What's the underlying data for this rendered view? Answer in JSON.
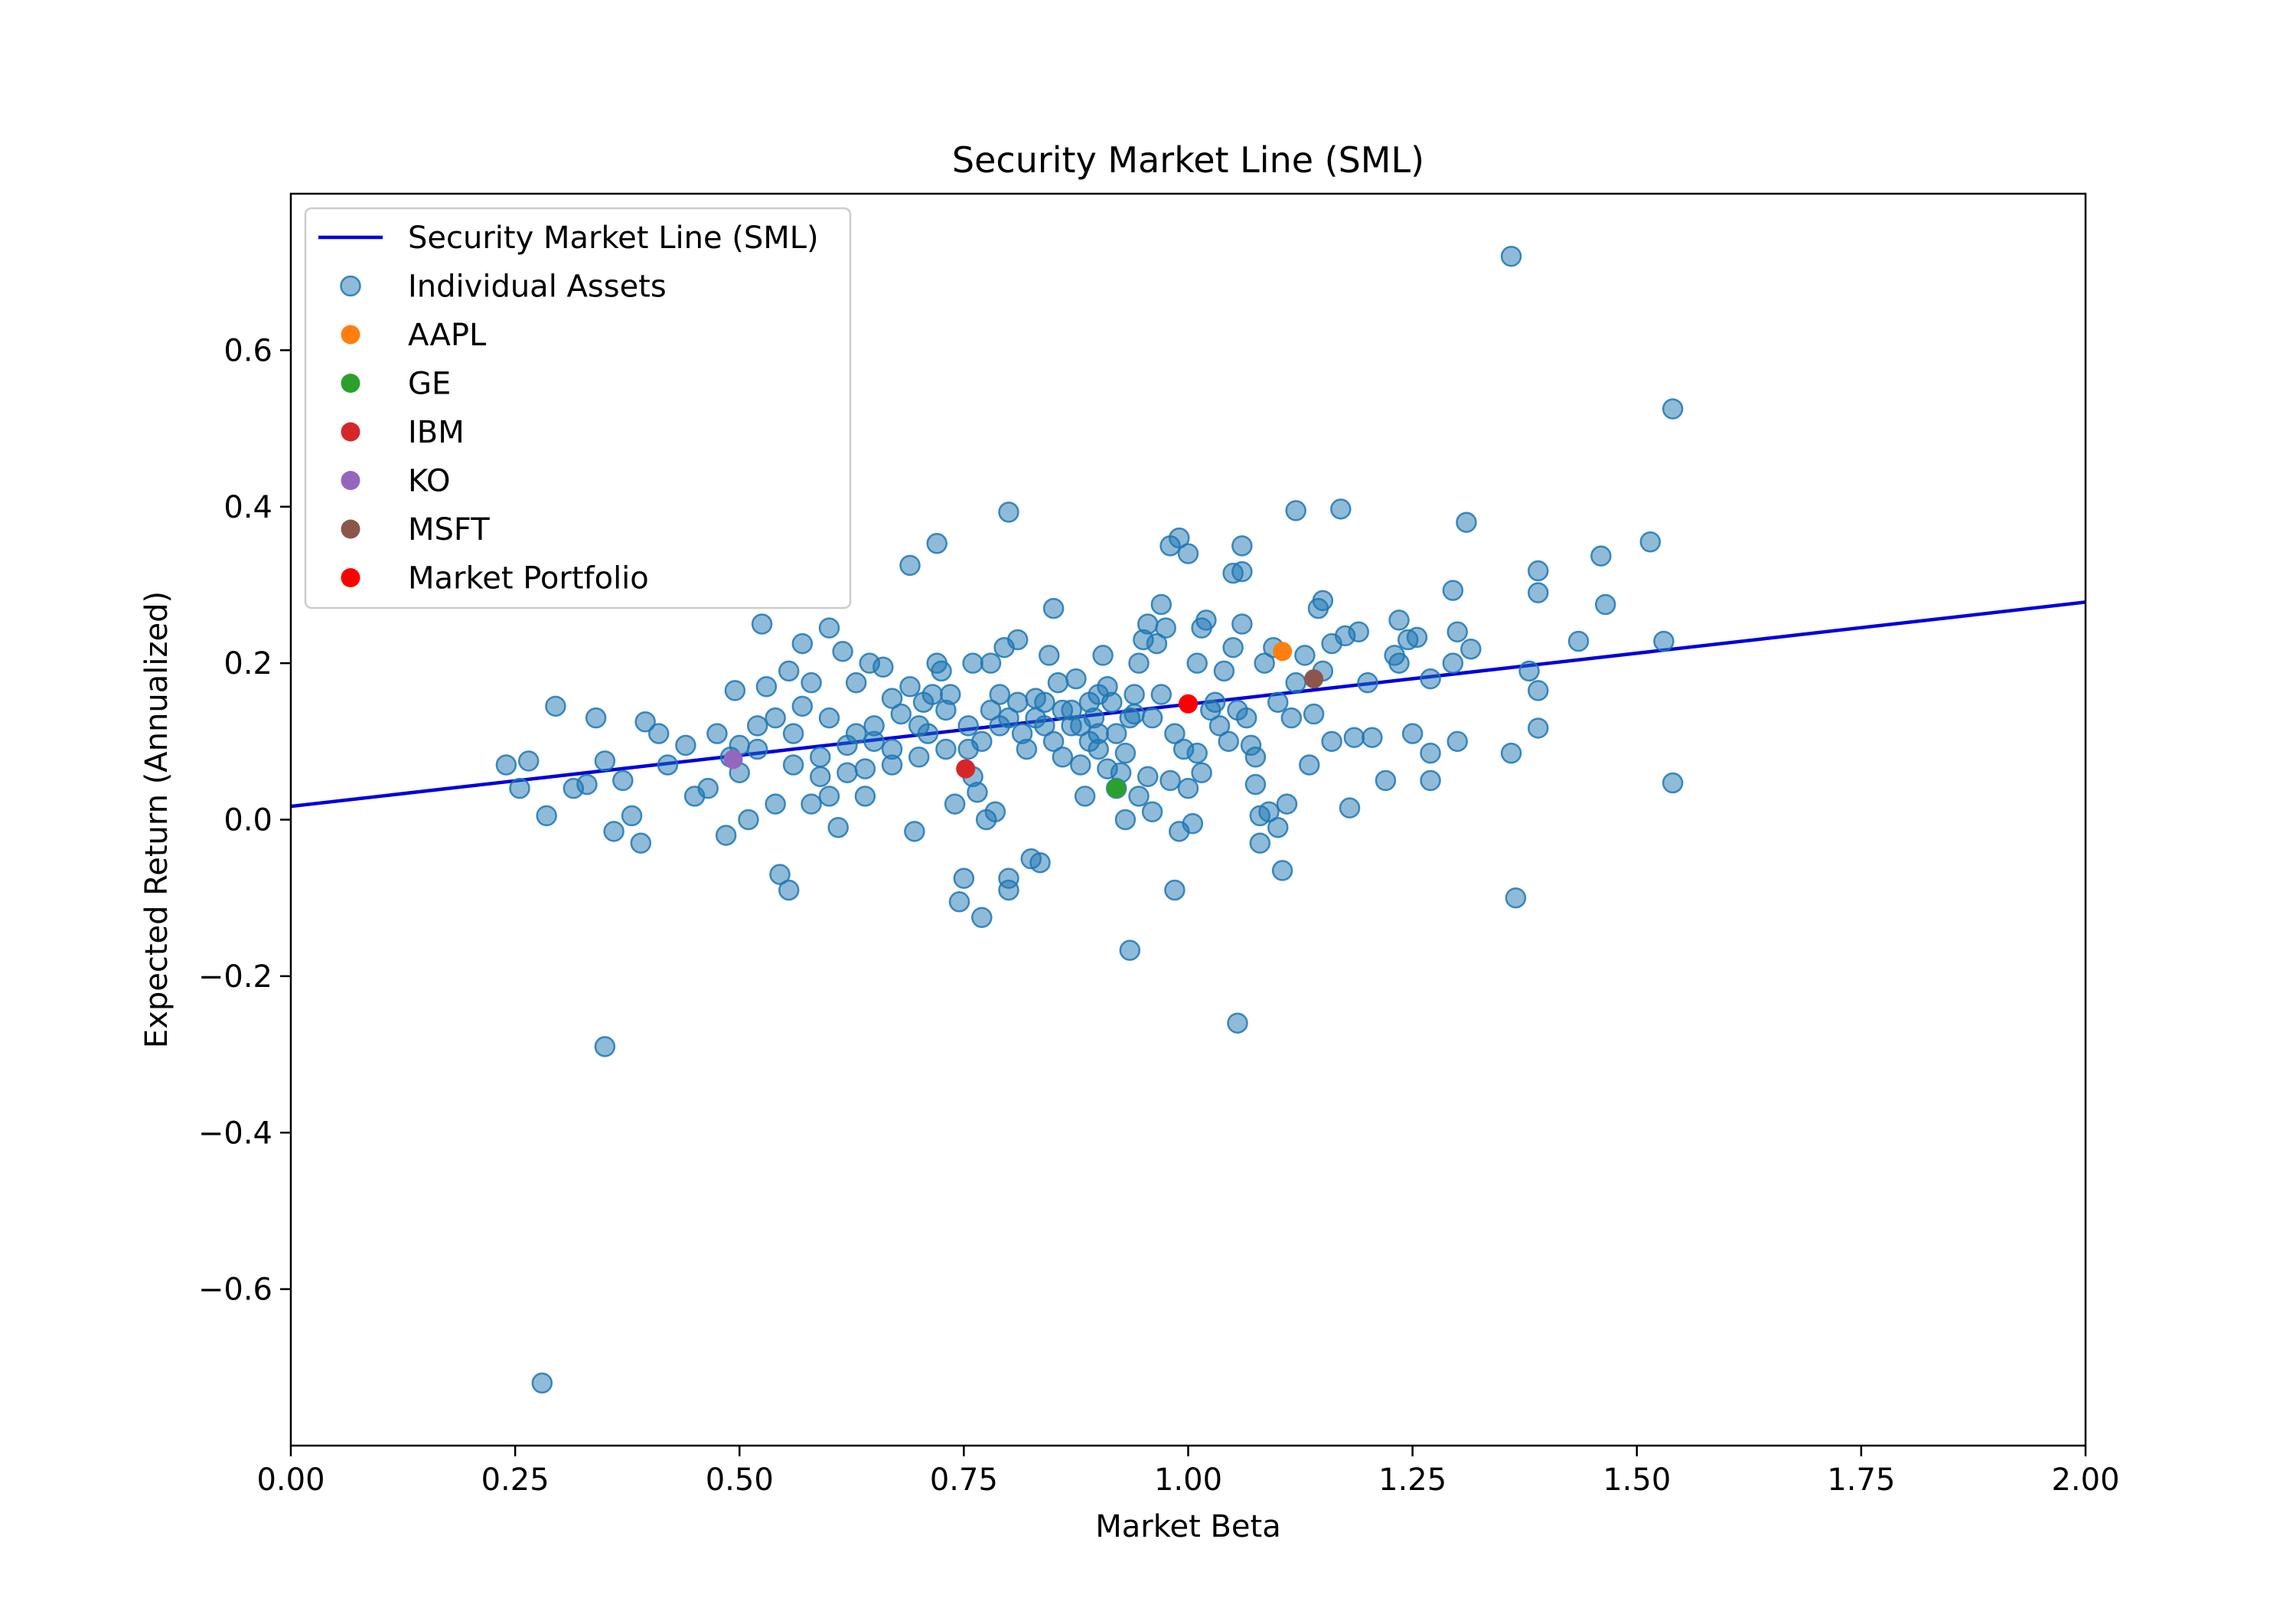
{
  "chart_data": {
    "type": "scatter",
    "title": "Security Market Line (SML)",
    "xlabel": "Market Beta",
    "ylabel": "Expected Return (Annualized)",
    "xlim": [
      0.0,
      2.0
    ],
    "ylim": [
      -0.8,
      0.8
    ],
    "xticks": [
      0.0,
      0.25,
      0.5,
      0.75,
      1.0,
      1.25,
      1.5,
      1.75,
      2.0
    ],
    "xtick_labels": [
      "0.00",
      "0.25",
      "0.50",
      "0.75",
      "1.00",
      "1.25",
      "1.50",
      "1.75",
      "2.00"
    ],
    "yticks": [
      -0.6,
      -0.4,
      -0.2,
      0.0,
      0.2,
      0.4,
      0.6
    ],
    "ytick_labels": [
      "−0.6",
      "−0.4",
      "−0.2",
      "0.0",
      "0.2",
      "0.4",
      "0.6"
    ],
    "grid": false,
    "legend_position": "top-left",
    "sml": {
      "name": "Security Market Line (SML)",
      "color": "#0000dd",
      "x": [
        0.0,
        2.0
      ],
      "y": [
        0.017,
        0.278
      ]
    },
    "individual_assets": {
      "name": "Individual Assets",
      "color": "#1f77b4",
      "points": [
        [
          0.28,
          -0.72
        ],
        [
          0.35,
          -0.29
        ],
        [
          1.36,
          0.72
        ],
        [
          1.54,
          0.525
        ],
        [
          1.54,
          0.047
        ],
        [
          1.365,
          -0.1
        ],
        [
          1.055,
          -0.26
        ],
        [
          0.935,
          -0.167
        ],
        [
          0.8,
          0.393
        ],
        [
          0.69,
          0.325
        ],
        [
          0.72,
          0.353
        ],
        [
          1.12,
          0.395
        ],
        [
          1.17,
          0.397
        ],
        [
          0.99,
          0.36
        ],
        [
          0.98,
          0.35
        ],
        [
          1.0,
          0.34
        ],
        [
          1.06,
          0.35
        ],
        [
          1.05,
          0.315
        ],
        [
          1.06,
          0.317
        ],
        [
          1.31,
          0.38
        ],
        [
          1.39,
          0.318
        ],
        [
          1.39,
          0.29
        ],
        [
          1.46,
          0.337
        ],
        [
          1.465,
          0.275
        ],
        [
          1.515,
          0.355
        ],
        [
          1.53,
          0.228
        ],
        [
          1.435,
          0.228
        ],
        [
          1.38,
          0.19
        ],
        [
          1.39,
          0.165
        ],
        [
          1.39,
          0.117
        ],
        [
          1.36,
          0.085
        ],
        [
          1.315,
          0.218
        ],
        [
          1.3,
          0.24
        ],
        [
          1.295,
          0.293
        ],
        [
          1.295,
          0.2
        ],
        [
          1.3,
          0.1
        ],
        [
          1.27,
          0.18
        ],
        [
          1.27,
          0.085
        ],
        [
          1.27,
          0.05
        ],
        [
          1.255,
          0.233
        ],
        [
          1.245,
          0.23
        ],
        [
          1.235,
          0.255
        ],
        [
          1.235,
          0.2
        ],
        [
          1.23,
          0.21
        ],
        [
          1.25,
          0.11
        ],
        [
          1.22,
          0.05
        ],
        [
          1.205,
          0.105
        ],
        [
          1.2,
          0.175
        ],
        [
          1.185,
          0.105
        ],
        [
          1.18,
          0.015
        ],
        [
          1.19,
          0.24
        ],
        [
          1.175,
          0.235
        ],
        [
          1.16,
          0.225
        ],
        [
          1.15,
          0.28
        ],
        [
          1.145,
          0.27
        ],
        [
          1.14,
          0.135
        ],
        [
          1.135,
          0.07
        ],
        [
          1.12,
          0.175
        ],
        [
          1.11,
          0.02
        ],
        [
          1.105,
          -0.065
        ],
        [
          1.1,
          -0.01
        ],
        [
          1.09,
          0.01
        ],
        [
          1.08,
          -0.03
        ],
        [
          1.08,
          0.005
        ],
        [
          1.075,
          0.045
        ],
        [
          1.07,
          0.095
        ],
        [
          1.06,
          0.25
        ],
        [
          1.05,
          0.22
        ],
        [
          1.04,
          0.19
        ],
        [
          1.03,
          0.15
        ],
        [
          1.02,
          0.255
        ],
        [
          1.015,
          0.245
        ],
        [
          1.01,
          0.2
        ],
        [
          1.01,
          0.085
        ],
        [
          1.005,
          -0.005
        ],
        [
          0.99,
          -0.015
        ],
        [
          0.985,
          -0.09
        ],
        [
          0.975,
          0.245
        ],
        [
          0.97,
          0.275
        ],
        [
          0.965,
          0.225
        ],
        [
          0.955,
          0.25
        ],
        [
          0.95,
          0.23
        ],
        [
          0.945,
          0.2
        ],
        [
          0.94,
          0.16
        ],
        [
          0.935,
          0.13
        ],
        [
          0.93,
          0.085
        ],
        [
          0.925,
          0.06
        ],
        [
          0.92,
          0.04
        ],
        [
          0.91,
          0.065
        ],
        [
          0.905,
          0.21
        ],
        [
          0.9,
          0.16
        ],
        [
          0.895,
          0.13
        ],
        [
          0.89,
          0.1
        ],
        [
          0.885,
          0.03
        ],
        [
          0.875,
          0.18
        ],
        [
          0.87,
          0.14
        ],
        [
          0.86,
          0.08
        ],
        [
          0.85,
          0.27
        ],
        [
          0.845,
          0.21
        ],
        [
          0.84,
          0.12
        ],
        [
          0.835,
          -0.055
        ],
        [
          0.825,
          -0.05
        ],
        [
          0.8,
          -0.075
        ],
        [
          0.8,
          -0.09
        ],
        [
          0.795,
          0.22
        ],
        [
          0.79,
          0.16
        ],
        [
          0.785,
          0.01
        ],
        [
          0.775,
          0.0
        ],
        [
          0.77,
          -0.125
        ],
        [
          0.765,
          0.035
        ],
        [
          0.76,
          0.2
        ],
        [
          0.755,
          0.09
        ],
        [
          0.75,
          -0.075
        ],
        [
          0.745,
          -0.105
        ],
        [
          0.74,
          0.02
        ],
        [
          0.73,
          0.14
        ],
        [
          0.725,
          0.19
        ],
        [
          0.72,
          0.2
        ],
        [
          0.71,
          0.11
        ],
        [
          0.7,
          0.08
        ],
        [
          0.695,
          -0.015
        ],
        [
          0.69,
          0.17
        ],
        [
          0.68,
          0.135
        ],
        [
          0.67,
          0.07
        ],
        [
          0.66,
          0.195
        ],
        [
          0.65,
          0.1
        ],
        [
          0.64,
          0.065
        ],
        [
          0.63,
          0.175
        ],
        [
          0.62,
          0.095
        ],
        [
          0.61,
          -0.01
        ],
        [
          0.6,
          0.13
        ],
        [
          0.59,
          0.055
        ],
        [
          0.58,
          0.175
        ],
        [
          0.57,
          0.225
        ],
        [
          0.56,
          0.11
        ],
        [
          0.555,
          -0.09
        ],
        [
          0.545,
          -0.07
        ],
        [
          0.54,
          0.02
        ],
        [
          0.53,
          0.17
        ],
        [
          0.525,
          0.25
        ],
        [
          0.52,
          0.12
        ],
        [
          0.51,
          0.0
        ],
        [
          0.5,
          0.095
        ],
        [
          0.495,
          0.165
        ],
        [
          0.49,
          0.08
        ],
        [
          0.485,
          -0.02
        ],
        [
          0.475,
          0.11
        ],
        [
          0.465,
          0.04
        ],
        [
          0.45,
          0.03
        ],
        [
          0.44,
          0.095
        ],
        [
          0.42,
          0.07
        ],
        [
          0.41,
          0.11
        ],
        [
          0.395,
          0.125
        ],
        [
          0.39,
          -0.03
        ],
        [
          0.38,
          0.005
        ],
        [
          0.37,
          0.05
        ],
        [
          0.36,
          -0.015
        ],
        [
          0.35,
          0.075
        ],
        [
          0.34,
          0.13
        ],
        [
          0.33,
          0.045
        ],
        [
          0.315,
          0.04
        ],
        [
          0.295,
          0.145
        ],
        [
          0.285,
          0.005
        ],
        [
          0.265,
          0.075
        ],
        [
          0.255,
          0.04
        ],
        [
          0.24,
          0.07
        ],
        [
          0.6,
          0.245
        ],
        [
          0.615,
          0.215
        ],
        [
          0.645,
          0.2
        ],
        [
          0.67,
          0.155
        ],
        [
          0.705,
          0.15
        ],
        [
          0.715,
          0.16
        ],
        [
          0.735,
          0.16
        ],
        [
          0.755,
          0.12
        ],
        [
          0.78,
          0.2
        ],
        [
          0.81,
          0.23
        ],
        [
          0.815,
          0.11
        ],
        [
          0.83,
          0.155
        ],
        [
          0.855,
          0.175
        ],
        [
          0.88,
          0.12
        ],
        [
          0.9,
          0.11
        ],
        [
          0.915,
          0.15
        ],
        [
          0.92,
          0.11
        ],
        [
          0.94,
          0.135
        ],
        [
          0.96,
          0.13
        ],
        [
          0.97,
          0.16
        ],
        [
          0.985,
          0.11
        ],
        [
          0.995,
          0.09
        ],
        [
          1.015,
          0.06
        ],
        [
          1.025,
          0.14
        ],
        [
          1.035,
          0.12
        ],
        [
          1.045,
          0.1
        ],
        [
          1.055,
          0.14
        ],
        [
          1.065,
          0.13
        ],
        [
          1.075,
          0.08
        ],
        [
          1.085,
          0.2
        ],
        [
          1.095,
          0.22
        ],
        [
          1.1,
          0.15
        ],
        [
          1.115,
          0.13
        ],
        [
          1.13,
          0.21
        ],
        [
          1.15,
          0.19
        ],
        [
          1.16,
          0.1
        ],
        [
          0.96,
          0.01
        ],
        [
          0.945,
          0.03
        ],
        [
          0.93,
          0.0
        ],
        [
          0.98,
          0.05
        ],
        [
          1.0,
          0.04
        ],
        [
          0.955,
          0.055
        ],
        [
          0.76,
          0.055
        ],
        [
          0.8,
          0.13
        ],
        [
          0.78,
          0.14
        ],
        [
          0.82,
          0.09
        ],
        [
          0.84,
          0.15
        ],
        [
          0.86,
          0.14
        ],
        [
          0.88,
          0.07
        ],
        [
          0.9,
          0.09
        ],
        [
          0.555,
          0.19
        ],
        [
          0.57,
          0.145
        ],
        [
          0.59,
          0.08
        ],
        [
          0.63,
          0.11
        ],
        [
          0.65,
          0.12
        ],
        [
          0.67,
          0.09
        ],
        [
          0.7,
          0.12
        ],
        [
          0.73,
          0.09
        ],
        [
          0.77,
          0.1
        ],
        [
          0.79,
          0.12
        ],
        [
          0.81,
          0.15
        ],
        [
          0.83,
          0.13
        ],
        [
          0.85,
          0.1
        ],
        [
          0.87,
          0.12
        ],
        [
          0.89,
          0.15
        ],
        [
          0.91,
          0.17
        ],
        [
          0.5,
          0.06
        ],
        [
          0.52,
          0.09
        ],
        [
          0.54,
          0.13
        ],
        [
          0.56,
          0.07
        ],
        [
          0.58,
          0.02
        ],
        [
          0.6,
          0.03
        ],
        [
          0.62,
          0.06
        ],
        [
          0.64,
          0.03
        ]
      ]
    },
    "highlighted": [
      {
        "name": "AAPL",
        "color": "#ff7f0e",
        "x": 1.105,
        "y": 0.215
      },
      {
        "name": "GE",
        "color": "#2ca02c",
        "x": 0.92,
        "y": 0.04
      },
      {
        "name": "IBM",
        "color": "#d62728",
        "x": 0.752,
        "y": 0.065
      },
      {
        "name": "KO",
        "color": "#9467bd",
        "x": 0.493,
        "y": 0.077
      },
      {
        "name": "MSFT",
        "color": "#8c564b",
        "x": 1.14,
        "y": 0.18
      },
      {
        "name": "Market Portfolio",
        "color": "#ff0000",
        "x": 1.0,
        "y": 0.148
      }
    ]
  }
}
